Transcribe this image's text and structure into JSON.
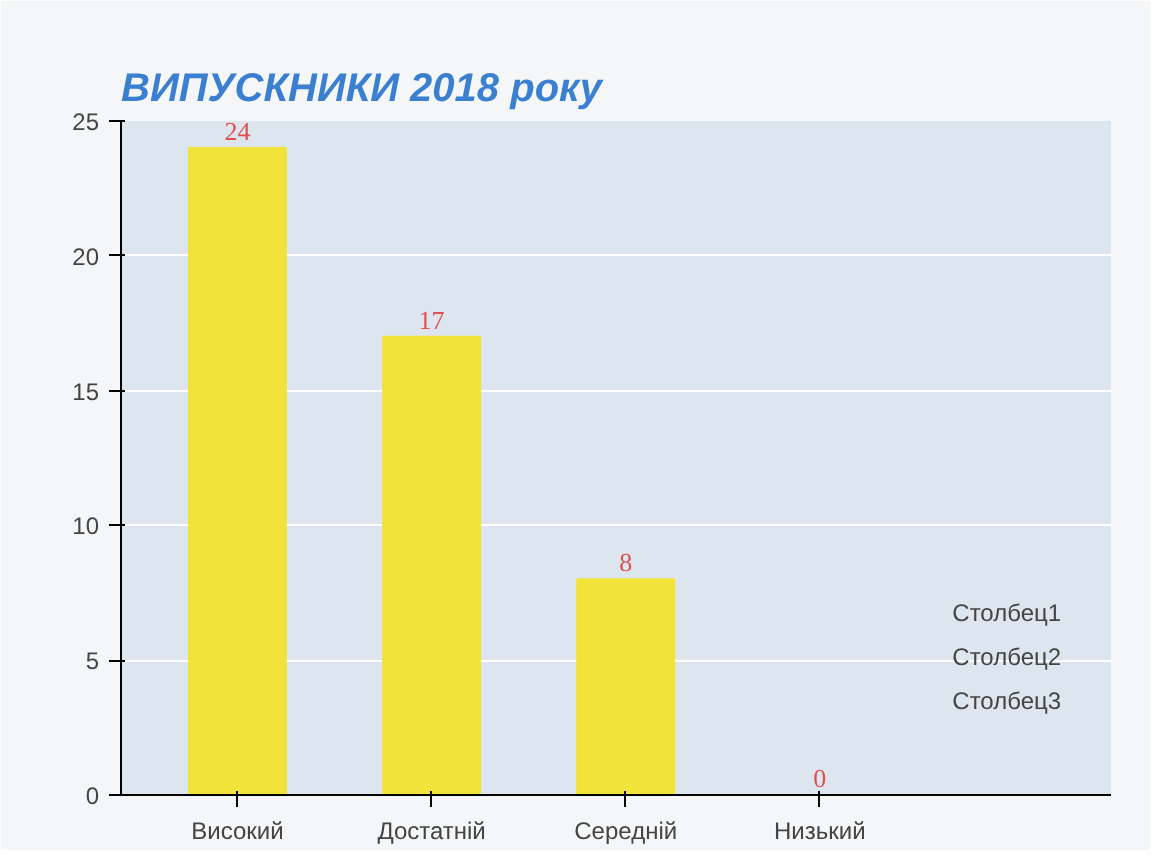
{
  "chart_data": {
    "type": "bar",
    "title": "ВИПУСКНИКИ  2018 року",
    "categories": [
      "Високий",
      "Достатній",
      "Середній",
      "Низький"
    ],
    "values": [
      24,
      17,
      8,
      0
    ],
    "color": "#f2e33a",
    "data_labels": true,
    "ylim": [
      0,
      25
    ],
    "yticks": [
      0,
      5,
      10,
      15,
      20,
      25
    ],
    "grid": "y",
    "annotations": [
      "Столбец1",
      "Столбец2",
      "Столбец3"
    ]
  }
}
